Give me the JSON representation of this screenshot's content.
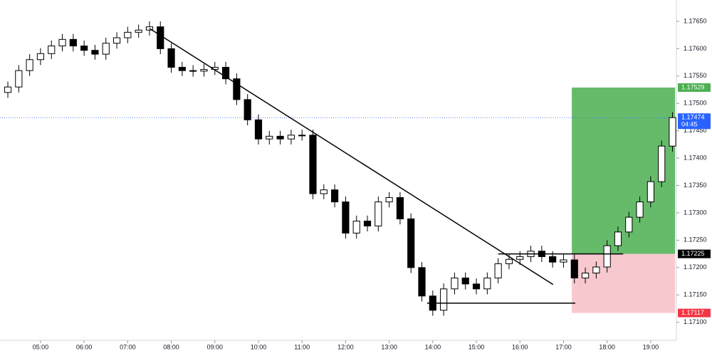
{
  "chart_data": {
    "type": "candlestick",
    "x": [
      4.25,
      4.5,
      4.75,
      5,
      5.25,
      5.5,
      5.75,
      6,
      6.25,
      6.5,
      6.75,
      7,
      7.25,
      7.5,
      7.75,
      8,
      8.25,
      8.5,
      8.75,
      9,
      9.25,
      9.5,
      9.75,
      10,
      10.25,
      10.5,
      10.75,
      11,
      11.25,
      11.5,
      11.75,
      12,
      12.25,
      12.5,
      12.75,
      13,
      13.25,
      13.5,
      13.75,
      14,
      14.25,
      14.5,
      14.75,
      15,
      15.25,
      15.5,
      15.75,
      16,
      16.25,
      16.5,
      16.75,
      17,
      17.25,
      17.5,
      17.75,
      18,
      18.25,
      18.5,
      18.75,
      19,
      19.25,
      19.5
    ],
    "open": [
      1.1752,
      1.1753,
      1.1756,
      1.1758,
      1.17591,
      1.17605,
      1.17617,
      1.17605,
      1.17597,
      1.1759,
      1.1761,
      1.1762,
      1.1763,
      1.17634,
      1.1764,
      1.176,
      1.17566,
      1.1756,
      1.17559,
      1.17562,
      1.17566,
      1.17545,
      1.17507,
      1.1747,
      1.17435,
      1.1744,
      1.17435,
      1.17442,
      1.17442,
      1.17335,
      1.17342,
      1.1732,
      1.17263,
      1.17285,
      1.17276,
      1.1732,
      1.17328,
      1.17289,
      1.172,
      1.17148,
      1.17122,
      1.17161,
      1.17181,
      1.1717,
      1.17161,
      1.17181,
      1.17207,
      1.17215,
      1.1722,
      1.1723,
      1.1722,
      1.1721,
      1.17214,
      1.17181,
      1.1719,
      1.17201,
      1.1724,
      1.17265,
      1.17292,
      1.1732,
      1.17357,
      1.17422
    ],
    "high": [
      1.1754,
      1.1757,
      1.1759,
      1.17601,
      1.17615,
      1.17627,
      1.17627,
      1.17615,
      1.17607,
      1.1762,
      1.1763,
      1.1764,
      1.17644,
      1.1765,
      1.1765,
      1.1761,
      1.17576,
      1.1757,
      1.17572,
      1.17576,
      1.17576,
      1.17555,
      1.17517,
      1.1748,
      1.1745,
      1.1745,
      1.17452,
      1.17452,
      1.17452,
      1.17352,
      1.17352,
      1.1733,
      1.17295,
      1.17295,
      1.1733,
      1.17338,
      1.17338,
      1.17299,
      1.1721,
      1.17158,
      1.17171,
      1.17191,
      1.17191,
      1.1718,
      1.17191,
      1.17217,
      1.17225,
      1.1723,
      1.1724,
      1.1724,
      1.1723,
      1.17224,
      1.17224,
      1.172,
      1.17211,
      1.1725,
      1.17275,
      1.17302,
      1.1733,
      1.17367,
      1.17432,
      1.17484
    ],
    "low": [
      1.1751,
      1.1752,
      1.1755,
      1.1757,
      1.17581,
      1.17595,
      1.17595,
      1.17587,
      1.1758,
      1.1758,
      1.176,
      1.1761,
      1.1762,
      1.17624,
      1.1759,
      1.17556,
      1.1755,
      1.17549,
      1.17549,
      1.17552,
      1.17535,
      1.17497,
      1.1746,
      1.17425,
      1.17425,
      1.17425,
      1.17425,
      1.17432,
      1.17325,
      1.17325,
      1.1731,
      1.17253,
      1.17253,
      1.17266,
      1.17266,
      1.1731,
      1.17279,
      1.1719,
      1.17138,
      1.17112,
      1.17112,
      1.17151,
      1.1716,
      1.17151,
      1.17151,
      1.17171,
      1.17197,
      1.17205,
      1.1721,
      1.1721,
      1.172,
      1.172,
      1.17171,
      1.17171,
      1.1718,
      1.17191,
      1.1723,
      1.17255,
      1.17282,
      1.1731,
      1.17347,
      1.17412
    ],
    "close": [
      1.1753,
      1.1756,
      1.1758,
      1.17591,
      1.17605,
      1.17617,
      1.17605,
      1.17597,
      1.1759,
      1.1761,
      1.1762,
      1.1763,
      1.17634,
      1.1764,
      1.176,
      1.17566,
      1.1756,
      1.17559,
      1.17562,
      1.17566,
      1.17545,
      1.17507,
      1.1747,
      1.17435,
      1.1744,
      1.17435,
      1.17442,
      1.17442,
      1.17335,
      1.17342,
      1.1732,
      1.17263,
      1.17285,
      1.17276,
      1.1732,
      1.17328,
      1.17289,
      1.172,
      1.17148,
      1.17122,
      1.17161,
      1.17181,
      1.1717,
      1.17161,
      1.17181,
      1.17207,
      1.17215,
      1.1722,
      1.1723,
      1.1722,
      1.1721,
      1.17214,
      1.17181,
      1.1719,
      1.17201,
      1.1724,
      1.17265,
      1.17292,
      1.1732,
      1.17357,
      1.17422,
      1.17474
    ],
    "up_color": "#ffffff",
    "down_color": "#000000",
    "xlim": [
      4.07,
      19.59
    ],
    "xticks": [
      {
        "value": 5,
        "label": "05:00"
      },
      {
        "value": 6,
        "label": "06:00"
      },
      {
        "value": 7,
        "label": "07:00"
      },
      {
        "value": 8,
        "label": "08:00"
      },
      {
        "value": 9,
        "label": "09:00"
      },
      {
        "value": 10,
        "label": "10:00"
      },
      {
        "value": 11,
        "label": "11:00"
      },
      {
        "value": 12,
        "label": "12:00"
      },
      {
        "value": 13,
        "label": "13:00"
      },
      {
        "value": 14,
        "label": "14:00"
      },
      {
        "value": 15,
        "label": "15:00"
      },
      {
        "value": 16,
        "label": "16:00"
      },
      {
        "value": 17,
        "label": "17:00"
      },
      {
        "value": 18,
        "label": "18:00"
      },
      {
        "value": 19,
        "label": "19:00"
      }
    ],
    "ylim": [
      1.17067,
      1.17689
    ],
    "yticks": [
      {
        "value": 1.171,
        "label": "1.17100"
      },
      {
        "value": 1.1715,
        "label": "1.17150"
      },
      {
        "value": 1.172,
        "label": "1.17200"
      },
      {
        "value": 1.1725,
        "label": "1.17250"
      },
      {
        "value": 1.173,
        "label": "1.17300"
      },
      {
        "value": 1.1735,
        "label": "1.17350"
      },
      {
        "value": 1.174,
        "label": "1.17400"
      },
      {
        "value": 1.1745,
        "label": "1.17450"
      },
      {
        "value": 1.175,
        "label": "1.17500"
      },
      {
        "value": 1.1755,
        "label": "1.17550"
      },
      {
        "value": 1.176,
        "label": "1.17600"
      },
      {
        "value": 1.1765,
        "label": "1.17650"
      }
    ],
    "trendline": {
      "x": [
        7.5,
        16.76
      ],
      "y": [
        1.17637,
        1.17169
      ]
    },
    "hlines": [
      {
        "x": [
          13.87,
          17.27
        ],
        "y": 1.17135
      },
      {
        "x": [
          15.5,
          18.37
        ],
        "y": 1.17225
      }
    ],
    "position": {
      "x": [
        17.19,
        19.56
      ],
      "target": 1.17529,
      "entry": 1.17225,
      "stop": 1.17117,
      "profit_color": "#66bb6a",
      "loss_color": "#f8c8cf"
    },
    "price_tags": [
      {
        "value": 1.17529,
        "color": "#4caf50"
      },
      {
        "value": 1.17474,
        "color": "#2962ff",
        "countdown": "04:45"
      },
      {
        "value": 1.17225,
        "color": "#000000"
      },
      {
        "value": 1.17117,
        "color": "#f23645"
      }
    ],
    "current_price_line": 1.17474
  }
}
